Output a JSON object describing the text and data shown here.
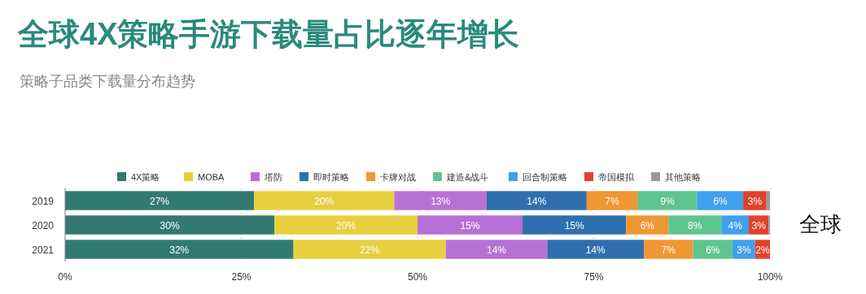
{
  "chart_data": {
    "type": "bar",
    "orientation": "horizontal",
    "stacked": true,
    "title": "全球4X策略手游下载量占比逐年增长",
    "subtitle": "策略子品类下载量分布趋势",
    "annotations": [
      "全球"
    ],
    "categories": [
      "2019",
      "2020",
      "2021"
    ],
    "xlim": [
      0,
      100
    ],
    "xticks": [
      {
        "value": 0,
        "label": "0%"
      },
      {
        "value": 25,
        "label": "25%"
      },
      {
        "value": 50,
        "label": "50%"
      },
      {
        "value": 75,
        "label": "75%"
      },
      {
        "value": 100,
        "label": "100%"
      }
    ],
    "grid": "x",
    "legend": "top",
    "series": [
      {
        "name": "4X策略",
        "color": "#327a70",
        "values": [
          26.8,
          29.7,
          32.4
        ],
        "value_labels": [
          "27%",
          "30%",
          "32%"
        ]
      },
      {
        "name": "MOBA",
        "color": "#e8cf3f",
        "values": [
          19.9,
          20.3,
          21.6
        ],
        "value_labels": [
          "20%",
          "20%",
          "22%"
        ]
      },
      {
        "name": "塔防",
        "color": "#b970d6",
        "values": [
          13.1,
          14.9,
          14.4
        ],
        "value_labels": [
          "13%",
          "15%",
          "14%"
        ]
      },
      {
        "name": "即时策略",
        "color": "#2f6fb0",
        "values": [
          14.2,
          14.7,
          13.7
        ],
        "value_labels": [
          "14%",
          "15%",
          "14%"
        ]
      },
      {
        "name": "卡牌对战",
        "color": "#ef9733",
        "values": [
          7.2,
          6.0,
          7.0
        ],
        "value_labels": [
          "7%",
          "6%",
          "7%"
        ]
      },
      {
        "name": "建造&战斗",
        "color": "#5fc58f",
        "values": [
          8.5,
          7.5,
          5.6
        ],
        "value_labels": [
          "9%",
          "8%",
          "6%"
        ]
      },
      {
        "name": "回合制策略",
        "color": "#3fa0ef",
        "values": [
          6.5,
          3.9,
          3.2
        ],
        "value_labels": [
          "6%",
          "4%",
          "3%"
        ]
      },
      {
        "name": "帝国模拟",
        "color": "#e2412a",
        "values": [
          3.3,
          2.8,
          2.1
        ],
        "value_labels": [
          "3%",
          "3%",
          "2%"
        ]
      },
      {
        "name": "其他策略",
        "color": "#9a9a9a",
        "values": [
          0.5,
          0.2,
          0
        ],
        "value_labels": [
          null,
          null,
          null
        ]
      }
    ]
  }
}
